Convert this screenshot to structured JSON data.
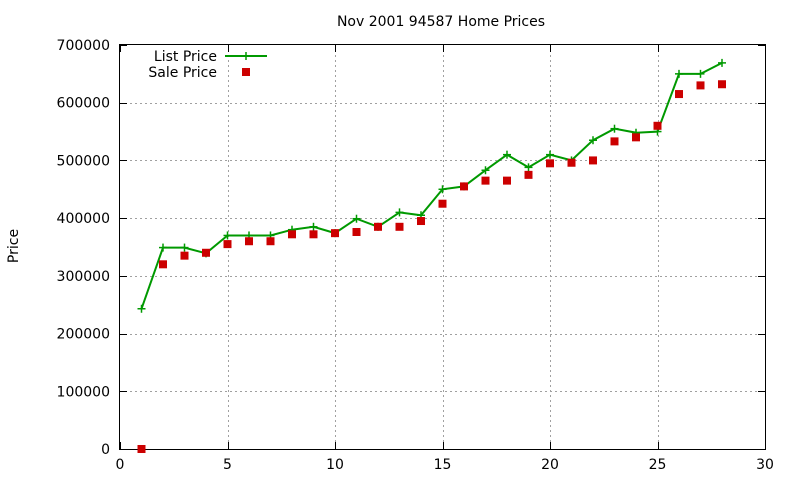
{
  "chart_data": {
    "type": "line",
    "title": "Nov 2001 94587 Home Prices",
    "xlabel": "",
    "ylabel": "Price",
    "xlim": [
      0,
      30
    ],
    "ylim": [
      0,
      700000
    ],
    "xticks": [
      0,
      5,
      10,
      15,
      20,
      25,
      30
    ],
    "yticks": [
      0,
      100000,
      200000,
      300000,
      400000,
      500000,
      600000,
      700000
    ],
    "grid": true,
    "legend_position": "top-left",
    "series": [
      {
        "name": "List Price",
        "style": "line-with-crosses",
        "color": "#009900",
        "x": [
          1,
          2,
          3,
          4,
          5,
          6,
          7,
          8,
          9,
          10,
          11,
          12,
          13,
          14,
          15,
          16,
          17,
          18,
          19,
          20,
          21,
          22,
          23,
          24,
          25,
          26,
          27,
          28
        ],
        "y": [
          243000,
          349000,
          349000,
          339000,
          370000,
          370000,
          370000,
          380000,
          385000,
          374000,
          399000,
          385000,
          410000,
          405000,
          450000,
          455000,
          483000,
          510000,
          488000,
          510000,
          500000,
          535000,
          555000,
          548000,
          550000,
          650000,
          650000,
          669000
        ]
      },
      {
        "name": "Sale Price",
        "style": "square-points",
        "color": "#cc0000",
        "x": [
          1,
          2,
          3,
          4,
          5,
          6,
          7,
          8,
          9,
          10,
          11,
          12,
          13,
          14,
          15,
          16,
          17,
          18,
          19,
          20,
          21,
          22,
          23,
          24,
          25,
          26,
          27,
          28
        ],
        "y": [
          0,
          320000,
          335000,
          340000,
          355000,
          360000,
          360000,
          372000,
          372000,
          374000,
          376000,
          385000,
          385000,
          395000,
          425000,
          455000,
          465000,
          465000,
          475000,
          495000,
          496000,
          500000,
          533000,
          540000,
          560000,
          615000,
          630000,
          632000
        ]
      }
    ]
  }
}
